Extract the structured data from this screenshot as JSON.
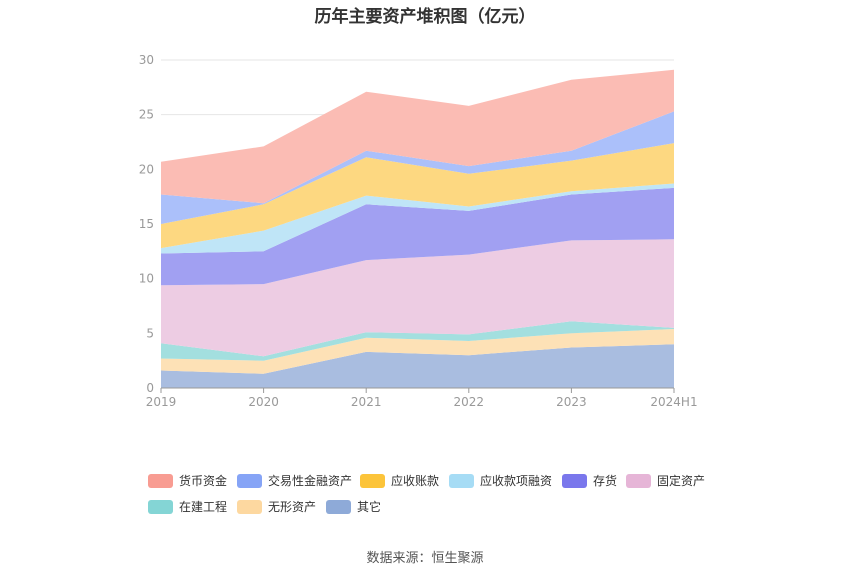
{
  "title": "历年主要资产堆积图（亿元）",
  "source": "数据来源：恒生聚源",
  "chart_data": {
    "type": "area",
    "stacked": true,
    "x": [
      "2019",
      "2020",
      "2021",
      "2022",
      "2023",
      "2024H1"
    ],
    "ylim": [
      0,
      30
    ],
    "yticks": [
      0,
      5,
      10,
      15,
      20,
      25,
      30
    ],
    "grid": true,
    "legend_position": "bottom",
    "series": [
      {
        "name": "其它",
        "color": "#a9bde0",
        "values": [
          1.6,
          1.3,
          3.3,
          3.0,
          3.7,
          4.0
        ]
      },
      {
        "name": "无形资产",
        "color": "#fde1b6",
        "values": [
          1.1,
          1.2,
          1.3,
          1.3,
          1.3,
          1.4
        ]
      },
      {
        "name": "在建工程",
        "color": "#a3dfdf",
        "values": [
          1.4,
          0.4,
          0.5,
          0.6,
          1.1,
          0.1
        ]
      },
      {
        "name": "固定资产",
        "color": "#edcce3",
        "values": [
          5.3,
          6.6,
          6.6,
          7.3,
          7.4,
          8.1
        ]
      },
      {
        "name": "存货",
        "color": "#a1a0f2",
        "values": [
          2.9,
          3.0,
          5.1,
          4.0,
          4.2,
          4.7
        ]
      },
      {
        "name": "应收款项融资",
        "color": "#bfe5f7",
        "values": [
          0.5,
          1.9,
          0.8,
          0.4,
          0.3,
          0.4
        ]
      },
      {
        "name": "应收账款",
        "color": "#fdd881",
        "values": [
          2.2,
          2.4,
          3.5,
          3.0,
          2.8,
          3.7
        ]
      },
      {
        "name": "交易性金融资产",
        "color": "#abc0fa",
        "values": [
          2.7,
          0.1,
          0.6,
          0.7,
          0.9,
          2.9
        ]
      },
      {
        "name": "货币资金",
        "color": "#fbbcb4",
        "values": [
          3.0,
          5.2,
          5.4,
          5.5,
          6.5,
          3.8
        ]
      }
    ],
    "legend_order": [
      "货币资金",
      "交易性金融资产",
      "应收账款",
      "应收款项融资",
      "存货",
      "固定资产",
      "在建工程",
      "无形资产",
      "其它"
    ],
    "legend_colors": {
      "货币资金": "#f89c92",
      "交易性金融资产": "#86a4f6",
      "应收账款": "#fcc43a",
      "应收款项融资": "#a6dcf5",
      "存货": "#7a77ec",
      "固定资产": "#e6b5d7",
      "在建工程": "#84d5d5",
      "无形资产": "#fdd8a0",
      "其它": "#8eaad8"
    }
  }
}
